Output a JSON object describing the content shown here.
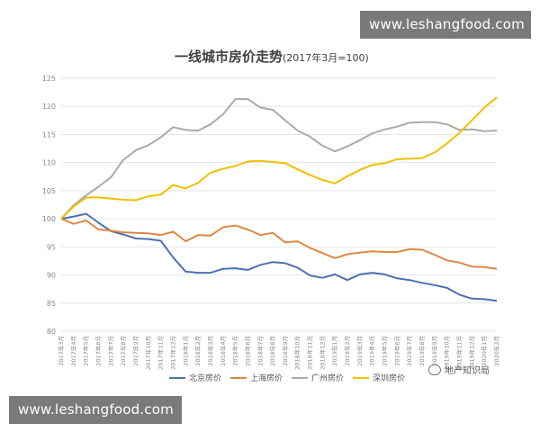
{
  "watermark": {
    "top": "www.leshangfood.com",
    "bottom": "www.leshangfood.com"
  },
  "source": "地产知识局",
  "chart_data": {
    "type": "line",
    "title": "一线城市房价走势",
    "subtitle": "(2017年3月=100)",
    "x": [
      "2017年3月",
      "2017年4月",
      "2017年5月",
      "2017年6月",
      "2017年7月",
      "2017年8月",
      "2017年9月",
      "2017年10月",
      "2017年11月",
      "2017年12月",
      "2018年1月",
      "2018年2月",
      "2018年3月",
      "2018年4月",
      "2018年5月",
      "2018年6月",
      "2018年7月",
      "2018年8月",
      "2018年9月",
      "2018年10月",
      "2018年11月",
      "2018年12月",
      "2019年1月",
      "2019年2月",
      "2019年3月",
      "2019年4月",
      "2019年5月",
      "2019年6月",
      "2019年7月",
      "2019年8月",
      "2019年9月",
      "2019年10月",
      "2019年11月",
      "2019年12月",
      "2020年1月",
      "2020年2月"
    ],
    "ylim": [
      80,
      125
    ],
    "yticks": [
      80,
      85,
      90,
      95,
      100,
      105,
      110,
      115,
      120,
      125
    ],
    "grid": true,
    "legend_position": "bottom",
    "series": [
      {
        "name": "北京房价",
        "color": "#4a72b0",
        "values": [
          100,
          100.4,
          100.9,
          99.3,
          97.8,
          97.2,
          96.5,
          96.4,
          96.1,
          93.1,
          90.6,
          90.4,
          90.4,
          91.1,
          91.2,
          90.9,
          91.8,
          92.3,
          92.1,
          91.3,
          89.9,
          89.5,
          90.1,
          89.1,
          90.1,
          90.4,
          90.1,
          89.4,
          89.1,
          88.6,
          88.2,
          87.7,
          86.5,
          85.8,
          85.7,
          85.4
        ]
      },
      {
        "name": "上海房价",
        "color": "#dd8844",
        "values": [
          100,
          99.1,
          99.7,
          98.1,
          97.9,
          97.6,
          97.5,
          97.4,
          97.1,
          97.7,
          96.0,
          97.1,
          97.0,
          98.5,
          98.8,
          98.1,
          97.1,
          97.5,
          95.8,
          96.0,
          94.8,
          93.9,
          93.0,
          93.7,
          94.0,
          94.2,
          94.1,
          94.1,
          94.6,
          94.5,
          93.6,
          92.6,
          92.2,
          91.5,
          91.4,
          91.1
        ]
      },
      {
        "name": "广州房价",
        "color": "#aaaaaa",
        "values": [
          100,
          102.4,
          104.2,
          105.7,
          107.4,
          110.5,
          112.2,
          113.1,
          114.5,
          116.3,
          115.8,
          115.7,
          116.8,
          118.6,
          121.3,
          121.3,
          119.8,
          119.4,
          117.5,
          115.7,
          114.6,
          113.0,
          112.0,
          112.9,
          114.0,
          115.2,
          115.9,
          116.4,
          117.1,
          117.2,
          117.2,
          116.8,
          115.8,
          115.9,
          115.6,
          115.7
        ]
      },
      {
        "name": "深圳房价",
        "color": "#f0c000",
        "values": [
          100,
          102.2,
          103.8,
          103.8,
          103.6,
          103.4,
          103.3,
          104.0,
          104.3,
          106.0,
          105.4,
          106.4,
          108.2,
          108.9,
          109.4,
          110.2,
          110.3,
          110.1,
          109.9,
          108.8,
          107.8,
          106.9,
          106.3,
          107.6,
          108.7,
          109.6,
          109.9,
          110.6,
          110.7,
          110.8,
          111.8,
          113.4,
          115.3,
          117.5,
          119.8,
          121.6
        ]
      }
    ]
  }
}
